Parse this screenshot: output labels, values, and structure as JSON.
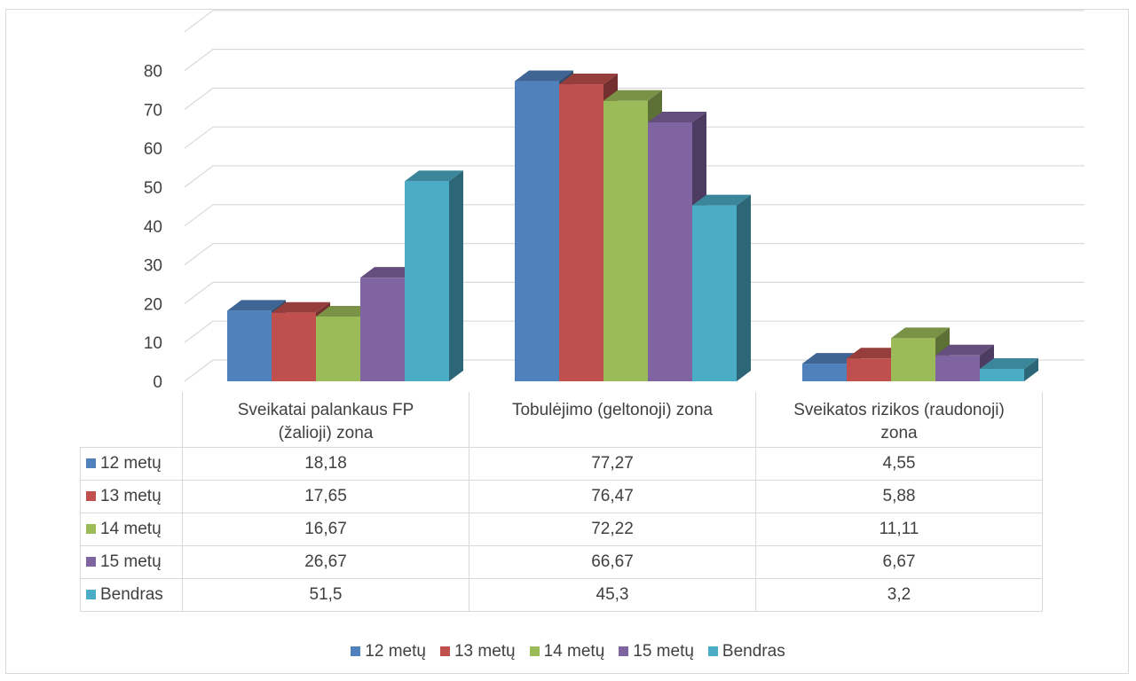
{
  "chart_data": {
    "type": "bar",
    "categories": [
      "Sveikatai palankaus FP (žalioji) zona",
      "Tobulėjimo (geltonoji) zona",
      "Sveikatos rizikos (raudonoji) zona"
    ],
    "category_lines": [
      [
        "Sveikatai palankaus FP",
        "(žalioji) zona"
      ],
      [
        "Tobulėjimo (geltonoji) zona"
      ],
      [
        "Sveikatos rizikos (raudonoji)",
        "zona"
      ]
    ],
    "series": [
      {
        "name": "12 metų",
        "color": "#4f81bd",
        "values": [
          18.18,
          77.27,
          4.55
        ],
        "labels": [
          "18,18",
          "77,27",
          "4,55"
        ]
      },
      {
        "name": "13 metų",
        "color": "#c0504d",
        "values": [
          17.65,
          76.47,
          5.88
        ],
        "labels": [
          "17,65",
          "76,47",
          "5,88"
        ]
      },
      {
        "name": "14 metų",
        "color": "#9bbb59",
        "values": [
          16.67,
          72.22,
          11.11
        ],
        "labels": [
          "16,67",
          "72,22",
          "11,11"
        ]
      },
      {
        "name": "15 metų",
        "color": "#8064a2",
        "values": [
          26.67,
          66.67,
          6.67
        ],
        "labels": [
          "26,67",
          "66,67",
          "6,67"
        ]
      },
      {
        "name": "Bendras",
        "color": "#4bacc6",
        "values": [
          51.5,
          45.3,
          3.2
        ],
        "labels": [
          "51,5",
          "45,3",
          "3,2"
        ]
      }
    ],
    "yticks": [
      "0",
      "10",
      "20",
      "30",
      "40",
      "50",
      "60",
      "70",
      "80"
    ],
    "ylim": [
      0,
      90
    ],
    "grid": true,
    "legend_position": "bottom",
    "three_d": true,
    "data_table": true
  }
}
